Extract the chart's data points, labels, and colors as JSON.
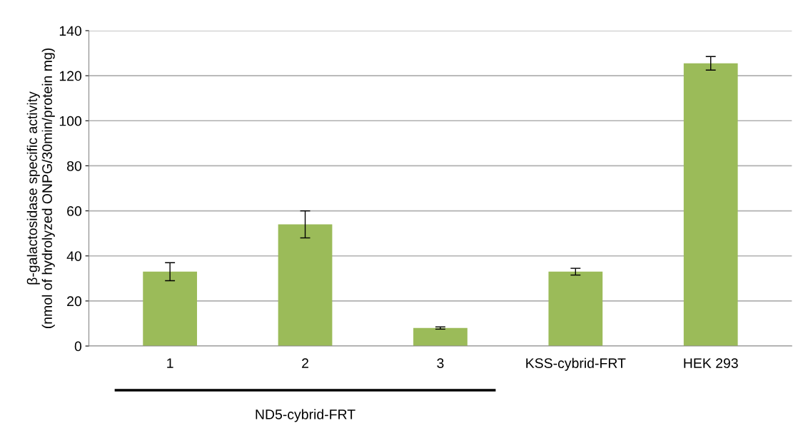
{
  "chart_data": {
    "type": "bar",
    "ylabel": "β-galactosidase specific activity\n(nmol of hydrolyzed ONPG/30min/protein mg)",
    "categories": [
      "1",
      "2",
      "3",
      "KSS-cybrid-FRT",
      "HEK 293"
    ],
    "values": [
      33,
      54,
      8,
      33,
      125.5
    ],
    "errors": [
      4,
      6,
      0.5,
      1.5,
      3
    ],
    "color": "#9bbb59",
    "ylim": [
      0,
      140
    ],
    "yticks": [
      0,
      20,
      40,
      60,
      80,
      100,
      120,
      140
    ],
    "grid": "y",
    "annotations": [
      "ND5-cybrid-FRT"
    ]
  }
}
